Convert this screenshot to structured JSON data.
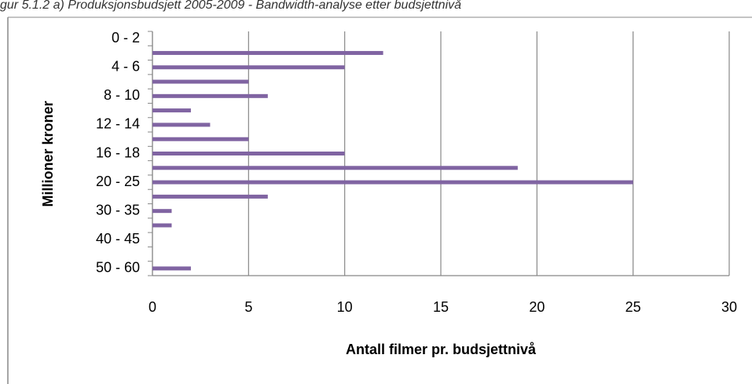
{
  "chart_data": {
    "type": "barh",
    "title": "gur 5.1.2 a) Produksjonsbudsjett 2005-2009 - Bandwidth-analyse etter budsjettnivå",
    "xlabel": "Antall filmer pr. budsjettnivå",
    "ylabel": "Millioner kroner",
    "categories": [
      "0 - 2",
      null,
      "4 - 6",
      null,
      "8 - 10",
      null,
      "12 - 14",
      null,
      "16 - 18",
      null,
      "20 - 25",
      null,
      "30 - 35",
      null,
      "40 - 45",
      null,
      "50 - 60"
    ],
    "values": [
      0,
      12,
      10,
      5,
      6,
      2,
      3,
      5,
      10,
      19,
      25,
      6,
      1,
      1,
      0,
      0,
      2
    ],
    "color": "#8064a2",
    "xlim": [
      0,
      30
    ],
    "xticks": [
      0,
      5,
      10,
      15,
      20,
      25,
      30
    ],
    "grid": true
  }
}
